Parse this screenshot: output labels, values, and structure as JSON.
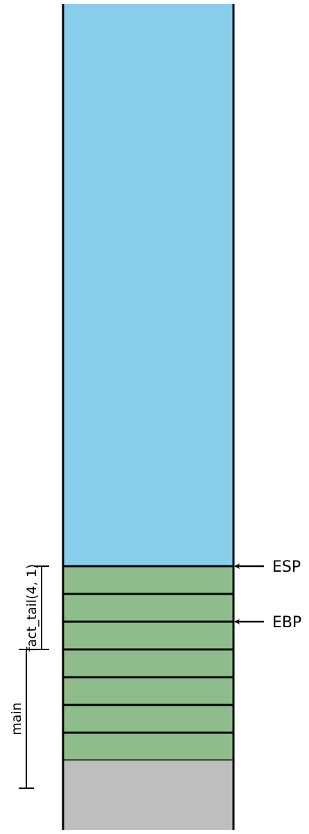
{
  "colors": {
    "free_space": "#87CEEB",
    "frame_slot": "#8FBC8B",
    "below_stack": "#BEBEBE",
    "stroke": "#000000"
  },
  "stack": {
    "free_slots": 1,
    "frame_slots": 7,
    "below_slots": 1
  },
  "registers": [
    {
      "name": "ESP",
      "slot_index": 0
    },
    {
      "name": "EBP",
      "slot_index": 2
    }
  ],
  "frames": [
    {
      "label": "fact_tail(4, 1)",
      "from_slot": 0,
      "to_slot": 3
    },
    {
      "label": "main",
      "from_slot": 3,
      "to_slot": 8
    }
  ]
}
